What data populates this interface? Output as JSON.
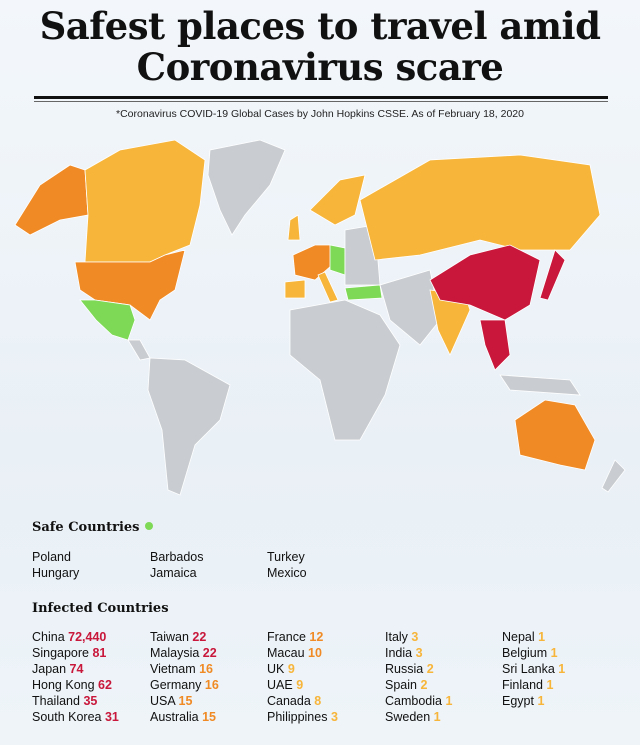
{
  "title_line1": "Safest places to travel amid",
  "title_line2": "Coronavirus scare",
  "source_note": "*Coronavirus COVID-19 Global Cases by John Hopkins CSSE. As of February 18, 2020",
  "colors": {
    "safe": "#7ed957",
    "high": "#c8173a",
    "medium": "#f08a24",
    "low": "#f7b53a",
    "none": "#c9cdd1"
  },
  "safe_title": "Safe Countries",
  "safe_countries": [
    [
      "Poland",
      "Hungary"
    ],
    [
      "Barbados",
      "Jamaica"
    ],
    [
      "Turkey",
      "Mexico"
    ]
  ],
  "infected_title": "Infected Countries",
  "infected_countries": [
    [
      {
        "name": "China",
        "count": "72,440",
        "level": "high"
      },
      {
        "name": "Singapore",
        "count": "81",
        "level": "high"
      },
      {
        "name": "Japan",
        "count": "74",
        "level": "high"
      },
      {
        "name": "Hong Kong",
        "count": "62",
        "level": "high"
      },
      {
        "name": "Thailand",
        "count": "35",
        "level": "high"
      },
      {
        "name": "South Korea",
        "count": "31",
        "level": "high"
      }
    ],
    [
      {
        "name": "Taiwan",
        "count": "22",
        "level": "high"
      },
      {
        "name": "Malaysia",
        "count": "22",
        "level": "high"
      },
      {
        "name": "Vietnam",
        "count": "16",
        "level": "medium"
      },
      {
        "name": "Germany",
        "count": "16",
        "level": "medium"
      },
      {
        "name": "USA",
        "count": "15",
        "level": "medium"
      },
      {
        "name": "Australia",
        "count": "15",
        "level": "medium"
      }
    ],
    [
      {
        "name": "France",
        "count": "12",
        "level": "medium"
      },
      {
        "name": "Macau",
        "count": "10",
        "level": "medium"
      },
      {
        "name": "UK",
        "count": "9",
        "level": "low"
      },
      {
        "name": "UAE",
        "count": "9",
        "level": "low"
      },
      {
        "name": "Canada",
        "count": "8",
        "level": "low"
      },
      {
        "name": "Philippines",
        "count": "3",
        "level": "low"
      }
    ],
    [
      {
        "name": "Italy",
        "count": "3",
        "level": "low"
      },
      {
        "name": "India",
        "count": "3",
        "level": "low"
      },
      {
        "name": "Russia",
        "count": "2",
        "level": "low"
      },
      {
        "name": "Spain",
        "count": "2",
        "level": "low"
      },
      {
        "name": "Cambodia",
        "count": "1",
        "level": "low"
      },
      {
        "name": "Sweden",
        "count": "1",
        "level": "low"
      }
    ],
    [
      {
        "name": "Nepal",
        "count": "1",
        "level": "low"
      },
      {
        "name": "Belgium",
        "count": "1",
        "level": "low"
      },
      {
        "name": "Sri Lanka",
        "count": "1",
        "level": "low"
      },
      {
        "name": "Finland",
        "count": "1",
        "level": "low"
      },
      {
        "name": "Egypt",
        "count": "1",
        "level": "low"
      }
    ]
  ]
}
